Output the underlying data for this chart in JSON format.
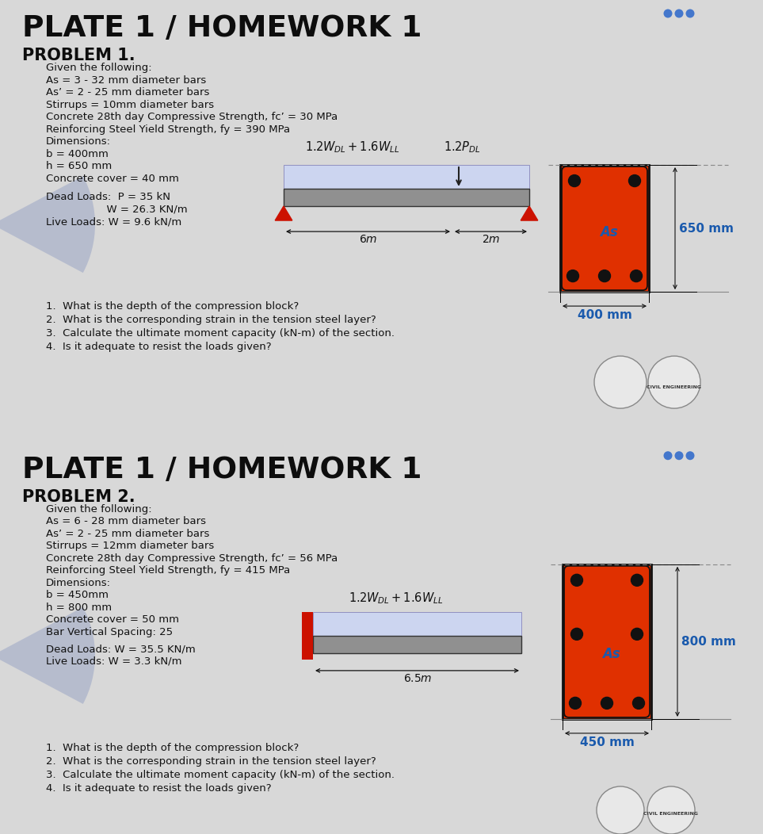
{
  "bg_color": "#d8d8d8",
  "panel_bg": "#ffffff",
  "title": "PLATE 1 / HOMEWORK 1",
  "blue_dot_color": "#4477cc",
  "blue_label": "#1a5aad",
  "p1": {
    "problem": "PROBLEM 1.",
    "given_lines": [
      "Given the following:",
      "As = 3 - 32 mm diameter bars",
      "As’ = 2 - 25 mm diameter bars",
      "Stirrups = 10mm diameter bars",
      "Concrete 28th day Compressive Strength, fc’ = 30 MPa",
      "Reinforcing Steel Yield Strength, fy = 390 MPa",
      "Dimensions:",
      "b = 400mm",
      "h = 650 mm",
      "Concrete cover = 40 mm"
    ],
    "loads_lines": [
      "Dead Loads:  P = 35 kN",
      "                  W = 26.3 KN/m",
      "Live Loads: W = 9.6 kN/m"
    ],
    "questions": [
      "1.  What is the depth of the compression block?",
      "2.  What is the corresponding strain in the tension steel layer?",
      "3.  Calculate the ultimate moment capacity (kN-m) of the section.",
      "4.  Is it adequate to resist the loads given?"
    ],
    "height_label": "650 mm",
    "width_label": "400 mm",
    "as_label": "As",
    "span1": "6m",
    "span2": "2m",
    "section_red": "#e03000",
    "support_red": "#cc1100"
  },
  "p2": {
    "problem": "PROBLEM 2.",
    "given_lines": [
      "Given the following:",
      "As = 6 - 28 mm diameter bars",
      "As’ = 2 - 25 mm diameter bars",
      "Stirrups = 12mm diameter bars",
      "Concrete 28th day Compressive Strength, fc’ = 56 MPa",
      "Reinforcing Steel Yield Strength, fy = 415 MPa",
      "Dimensions:",
      "b = 450mm",
      "h = 800 mm",
      "Concrete cover = 50 mm",
      "Bar Vertical Spacing: 25"
    ],
    "loads_lines": [
      "Dead Loads: W = 35.5 KN/m",
      "Live Loads: W = 3.3 kN/m"
    ],
    "questions": [
      "1.  What is the depth of the compression block?",
      "2.  What is the corresponding strain in the tension steel layer?",
      "3.  Calculate the ultimate moment capacity (kN-m) of the section.",
      "4.  Is it adequate to resist the loads given?"
    ],
    "height_label": "800 mm",
    "width_label": "450 mm",
    "as_label": "As",
    "span": "6.5m",
    "section_red": "#e03000",
    "wall_red": "#cc1100"
  }
}
